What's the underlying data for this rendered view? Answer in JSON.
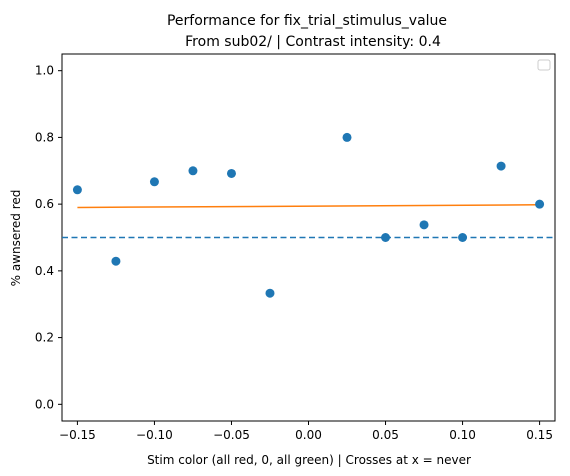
{
  "chart_data": {
    "type": "scatter",
    "title_line1": "Performance for fix_trial_stimulus_value",
    "title_line2": "From sub02/ | Contrast intensity: 0.4",
    "xlabel": "Stim color (all red, 0, all green) | Crosses at x = never",
    "ylabel": "% awnsered red",
    "xlim": [
      -0.16,
      0.16
    ],
    "ylim": [
      -0.05,
      1.05
    ],
    "xticks": [
      -0.15,
      -0.1,
      -0.05,
      0.0,
      0.05,
      0.1,
      0.15
    ],
    "xtick_labels": [
      "−0.15",
      "−0.10",
      "−0.05",
      "0.00",
      "0.05",
      "0.10",
      "0.15"
    ],
    "yticks": [
      0.0,
      0.2,
      0.4,
      0.6,
      0.8,
      1.0
    ],
    "ytick_labels": [
      "0.0",
      "0.2",
      "0.4",
      "0.6",
      "0.8",
      "1.0"
    ],
    "points": {
      "x": [
        -0.15,
        -0.125,
        -0.1,
        -0.075,
        -0.05,
        -0.025,
        0.025,
        0.05,
        0.075,
        0.1,
        0.125,
        0.15
      ],
      "y": [
        0.643,
        0.429,
        0.667,
        0.7,
        0.692,
        0.333,
        0.8,
        0.5,
        0.538,
        0.5,
        0.714,
        0.6
      ],
      "color": "#1f77b4"
    },
    "fit_line": {
      "x": [
        -0.15,
        0.15
      ],
      "y": [
        0.59,
        0.598
      ],
      "color": "#ff7f0e"
    },
    "reference_line": {
      "y": 0.5,
      "style": "dashed",
      "color": "#1f77b4"
    },
    "legend": {
      "placement": "top-right",
      "entries": []
    },
    "grid": false
  }
}
